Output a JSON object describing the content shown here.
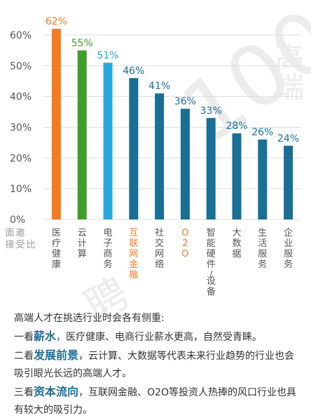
{
  "chart_data": {
    "type": "bar",
    "categories": [
      "医疗健康",
      "云计算",
      "电子商务",
      "互联网金融",
      "社交网络",
      "O2O",
      "智能硬件/设备",
      "大数据",
      "生活服务",
      "企业服务"
    ],
    "values": [
      62,
      55,
      51,
      46,
      41,
      36,
      33,
      28,
      26,
      24
    ],
    "value_labels": [
      "62%",
      "55%",
      "51%",
      "46%",
      "41%",
      "36%",
      "33%",
      "28%",
      "26%",
      "24%"
    ],
    "ylabel": "面邀接受比",
    "ylim": [
      0,
      65
    ],
    "yticks": [
      0,
      10,
      20,
      30,
      40,
      50,
      60
    ],
    "ytick_labels": [
      "0%",
      "10%",
      "20%",
      "30%",
      "40%",
      "50%",
      "60%"
    ],
    "bar_colors": [
      "#f47a20",
      "#3f9e2a",
      "#2aa9df",
      "#1a6f95",
      "#1a6f95",
      "#1a6f95",
      "#1a6f95",
      "#1a6f95",
      "#1a6f95",
      "#1a6f95"
    ],
    "label_colors": [
      "#f47a20",
      "#3f9e2a",
      "#2aa9df",
      "#1a6f95",
      "#1a6f95",
      "#1a6f95",
      "#1a6f95",
      "#1a6f95",
      "#1a6f95",
      "#1a6f95"
    ],
    "category_colors": [
      "#555555",
      "#555555",
      "#555555",
      "#f47a20",
      "#555555",
      "#f47a20",
      "#555555",
      "#555555",
      "#555555",
      "#555555"
    ],
    "grid": true
  },
  "watermark": {
    "text1": "高端",
    "text2": "100",
    "text3": "聘"
  },
  "notes": {
    "intro": "高端人才在挑选行业时会各有侧重:",
    "p1_prefix": "一看",
    "p1_key": "薪水",
    "p1_rest": "，医疗健康、电商行业薪水更高，自然受青睐。",
    "p2_prefix": "二看",
    "p2_key": "发展前景",
    "p2_rest": "，云计算、大数据等代表未来行业趋势的行业也会吸引眼光长远的高端人才。",
    "p3_prefix": "三看",
    "p3_key": "资本流向",
    "p3_rest": "，互联网金融、O2O等投资人热捧的风口行业也具有较大的吸引力。"
  }
}
